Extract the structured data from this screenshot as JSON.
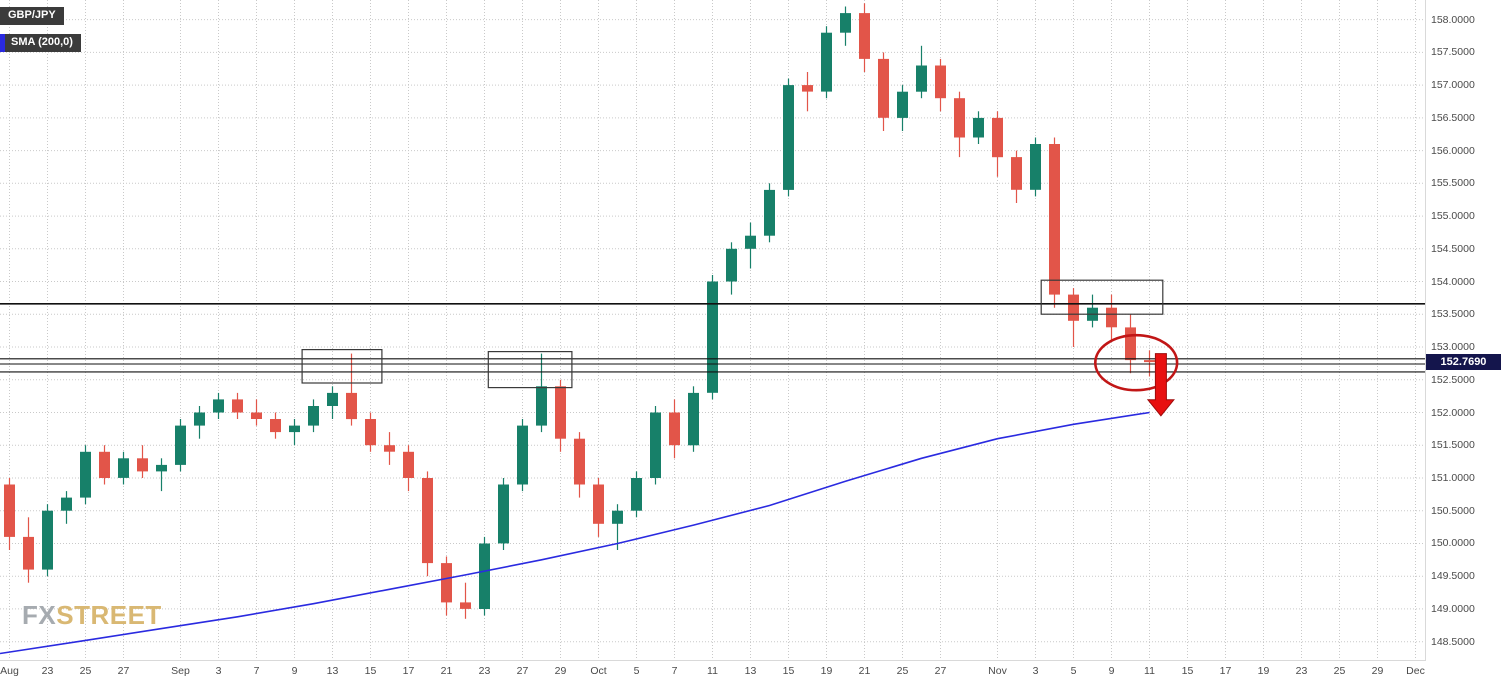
{
  "header": {
    "symbol_badge": "GBP/JPY",
    "indicator_badge": "SMA (200,0)"
  },
  "current_price": {
    "label": "152.7690",
    "value": 152.769
  },
  "watermark": {
    "fx": "FX",
    "street": "STREET"
  },
  "colors": {
    "up": "#178069",
    "down": "#e25549",
    "sma": "#2a2ae0",
    "level": "#111111",
    "grid": "#c9c9c9",
    "rect": "#3a3a3a",
    "annotation": "#c11616",
    "arrow": "#e81010",
    "axis_text": "#4a4a4a",
    "price_tag_bg": "#14154c"
  },
  "price_axis": {
    "labels": [
      "158.0000",
      "157.5000",
      "157.0000",
      "156.5000",
      "156.0000",
      "155.5000",
      "155.0000",
      "154.5000",
      "154.0000",
      "153.5000",
      "153.0000",
      "152.5000",
      "152.0000",
      "151.5000",
      "151.0000",
      "150.5000",
      "150.0000",
      "149.5000",
      "149.0000",
      "148.5000"
    ]
  },
  "time_axis": {
    "ticks": [
      {
        "label": "Aug",
        "i": 0
      },
      {
        "label": "23",
        "i": 2
      },
      {
        "label": "25",
        "i": 4
      },
      {
        "label": "27",
        "i": 6
      },
      {
        "label": "Sep",
        "i": 9
      },
      {
        "label": "3",
        "i": 11
      },
      {
        "label": "7",
        "i": 13
      },
      {
        "label": "9",
        "i": 15
      },
      {
        "label": "13",
        "i": 17
      },
      {
        "label": "15",
        "i": 19
      },
      {
        "label": "17",
        "i": 21
      },
      {
        "label": "21",
        "i": 23
      },
      {
        "label": "23",
        "i": 25
      },
      {
        "label": "27",
        "i": 27
      },
      {
        "label": "29",
        "i": 29
      },
      {
        "label": "Oct",
        "i": 31
      },
      {
        "label": "5",
        "i": 33
      },
      {
        "label": "7",
        "i": 35
      },
      {
        "label": "11",
        "i": 37
      },
      {
        "label": "13",
        "i": 39
      },
      {
        "label": "15",
        "i": 41
      },
      {
        "label": "19",
        "i": 43
      },
      {
        "label": "21",
        "i": 45
      },
      {
        "label": "25",
        "i": 47
      },
      {
        "label": "27",
        "i": 49
      },
      {
        "label": "Nov",
        "i": 52
      },
      {
        "label": "3",
        "i": 54
      },
      {
        "label": "5",
        "i": 56
      },
      {
        "label": "9",
        "i": 58
      },
      {
        "label": "11",
        "i": 60
      },
      {
        "label": "15",
        "i": 62
      },
      {
        "label": "17",
        "i": 64
      },
      {
        "label": "19",
        "i": 66
      },
      {
        "label": "23",
        "i": 68
      },
      {
        "label": "25",
        "i": 70
      },
      {
        "label": "29",
        "i": 72
      },
      {
        "label": "Dec",
        "i": 74
      }
    ]
  },
  "chart_data": {
    "type": "candlestick",
    "title": "GBP/JPY",
    "legend": [
      "SMA (200,0)"
    ],
    "ylim": [
      148.22,
      158.3
    ],
    "xlabel": "",
    "ylabel": "",
    "candles": [
      {
        "d": "Aug 19",
        "o": 150.9,
        "h": 151.0,
        "l": 149.9,
        "c": 150.1
      },
      {
        "d": "Aug 20",
        "o": 150.1,
        "h": 150.4,
        "l": 149.4,
        "c": 149.6
      },
      {
        "d": "Aug 23",
        "o": 149.6,
        "h": 150.6,
        "l": 149.5,
        "c": 150.5
      },
      {
        "d": "Aug 24",
        "o": 150.5,
        "h": 150.8,
        "l": 150.3,
        "c": 150.7
      },
      {
        "d": "Aug 25",
        "o": 150.7,
        "h": 151.5,
        "l": 150.6,
        "c": 151.4
      },
      {
        "d": "Aug 26",
        "o": 151.4,
        "h": 151.5,
        "l": 150.9,
        "c": 151.0
      },
      {
        "d": "Aug 27",
        "o": 151.0,
        "h": 151.4,
        "l": 150.9,
        "c": 151.3
      },
      {
        "d": "Aug 30",
        "o": 151.3,
        "h": 151.5,
        "l": 151.0,
        "c": 151.1
      },
      {
        "d": "Aug 31",
        "o": 151.1,
        "h": 151.3,
        "l": 150.8,
        "c": 151.2
      },
      {
        "d": "Sep 1",
        "o": 151.2,
        "h": 151.9,
        "l": 151.1,
        "c": 151.8
      },
      {
        "d": "Sep 2",
        "o": 151.8,
        "h": 152.1,
        "l": 151.6,
        "c": 152.0
      },
      {
        "d": "Sep 3",
        "o": 152.0,
        "h": 152.3,
        "l": 151.9,
        "c": 152.2
      },
      {
        "d": "Sep 6",
        "o": 152.2,
        "h": 152.3,
        "l": 151.9,
        "c": 152.0
      },
      {
        "d": "Sep 7",
        "o": 152.0,
        "h": 152.2,
        "l": 151.8,
        "c": 151.9
      },
      {
        "d": "Sep 8",
        "o": 151.9,
        "h": 152.0,
        "l": 151.6,
        "c": 151.7
      },
      {
        "d": "Sep 9",
        "o": 151.7,
        "h": 151.9,
        "l": 151.5,
        "c": 151.8
      },
      {
        "d": "Sep 10",
        "o": 151.8,
        "h": 152.2,
        "l": 151.7,
        "c": 152.1
      },
      {
        "d": "Sep 13",
        "o": 152.1,
        "h": 152.4,
        "l": 151.9,
        "c": 152.3
      },
      {
        "d": "Sep 14",
        "o": 152.3,
        "h": 152.9,
        "l": 151.8,
        "c": 151.9
      },
      {
        "d": "Sep 15",
        "o": 151.9,
        "h": 152.0,
        "l": 151.4,
        "c": 151.5
      },
      {
        "d": "Sep 16",
        "o": 151.5,
        "h": 151.7,
        "l": 151.2,
        "c": 151.4
      },
      {
        "d": "Sep 17",
        "o": 151.4,
        "h": 151.5,
        "l": 150.8,
        "c": 151.0
      },
      {
        "d": "Sep 20",
        "o": 151.0,
        "h": 151.1,
        "l": 149.5,
        "c": 149.7
      },
      {
        "d": "Sep 21",
        "o": 149.7,
        "h": 149.8,
        "l": 148.9,
        "c": 149.1
      },
      {
        "d": "Sep 22",
        "o": 149.1,
        "h": 149.4,
        "l": 148.85,
        "c": 149.0
      },
      {
        "d": "Sep 23",
        "o": 149.0,
        "h": 150.1,
        "l": 148.9,
        "c": 150.0
      },
      {
        "d": "Sep 24",
        "o": 150.0,
        "h": 151.0,
        "l": 149.9,
        "c": 150.9
      },
      {
        "d": "Sep 27",
        "o": 150.9,
        "h": 151.9,
        "l": 150.8,
        "c": 151.8
      },
      {
        "d": "Sep 28",
        "o": 151.8,
        "h": 152.9,
        "l": 151.7,
        "c": 152.4
      },
      {
        "d": "Sep 29",
        "o": 152.4,
        "h": 152.5,
        "l": 151.4,
        "c": 151.6
      },
      {
        "d": "Sep 30",
        "o": 151.6,
        "h": 151.7,
        "l": 150.7,
        "c": 150.9
      },
      {
        "d": "Oct 1",
        "o": 150.9,
        "h": 151.0,
        "l": 150.1,
        "c": 150.3
      },
      {
        "d": "Oct 4",
        "o": 150.3,
        "h": 150.6,
        "l": 149.9,
        "c": 150.5
      },
      {
        "d": "Oct 5",
        "o": 150.5,
        "h": 151.1,
        "l": 150.4,
        "c": 151.0
      },
      {
        "d": "Oct 6",
        "o": 151.0,
        "h": 152.1,
        "l": 150.9,
        "c": 152.0
      },
      {
        "d": "Oct 7",
        "o": 152.0,
        "h": 152.2,
        "l": 151.3,
        "c": 151.5
      },
      {
        "d": "Oct 8",
        "o": 151.5,
        "h": 152.4,
        "l": 151.4,
        "c": 152.3
      },
      {
        "d": "Oct 11",
        "o": 152.3,
        "h": 154.1,
        "l": 152.2,
        "c": 154.0
      },
      {
        "d": "Oct 12",
        "o": 154.0,
        "h": 154.6,
        "l": 153.8,
        "c": 154.5
      },
      {
        "d": "Oct 13",
        "o": 154.5,
        "h": 154.9,
        "l": 154.2,
        "c": 154.7
      },
      {
        "d": "Oct 14",
        "o": 154.7,
        "h": 155.5,
        "l": 154.6,
        "c": 155.4
      },
      {
        "d": "Oct 15",
        "o": 155.4,
        "h": 157.1,
        "l": 155.3,
        "c": 157.0
      },
      {
        "d": "Oct 18",
        "o": 157.0,
        "h": 157.2,
        "l": 156.6,
        "c": 156.9
      },
      {
        "d": "Oct 19",
        "o": 156.9,
        "h": 157.9,
        "l": 156.8,
        "c": 157.8
      },
      {
        "d": "Oct 20",
        "o": 157.8,
        "h": 158.2,
        "l": 157.6,
        "c": 158.1
      },
      {
        "d": "Oct 21",
        "o": 158.1,
        "h": 158.25,
        "l": 157.2,
        "c": 157.4
      },
      {
        "d": "Oct 22",
        "o": 157.4,
        "h": 157.5,
        "l": 156.3,
        "c": 156.5
      },
      {
        "d": "Oct 25",
        "o": 156.5,
        "h": 157.0,
        "l": 156.3,
        "c": 156.9
      },
      {
        "d": "Oct 26",
        "o": 156.9,
        "h": 157.6,
        "l": 156.8,
        "c": 157.3
      },
      {
        "d": "Oct 27",
        "o": 157.3,
        "h": 157.4,
        "l": 156.6,
        "c": 156.8
      },
      {
        "d": "Oct 28",
        "o": 156.8,
        "h": 156.9,
        "l": 155.9,
        "c": 156.2
      },
      {
        "d": "Oct 29",
        "o": 156.2,
        "h": 156.6,
        "l": 156.1,
        "c": 156.5
      },
      {
        "d": "Nov 1",
        "o": 156.5,
        "h": 156.6,
        "l": 155.6,
        "c": 155.9
      },
      {
        "d": "Nov 2",
        "o": 155.9,
        "h": 156.0,
        "l": 155.2,
        "c": 155.4
      },
      {
        "d": "Nov 3",
        "o": 155.4,
        "h": 156.2,
        "l": 155.3,
        "c": 156.1
      },
      {
        "d": "Nov 4",
        "o": 156.1,
        "h": 156.2,
        "l": 153.6,
        "c": 153.8
      },
      {
        "d": "Nov 5",
        "o": 153.8,
        "h": 153.9,
        "l": 153.0,
        "c": 153.4
      },
      {
        "d": "Nov 8",
        "o": 153.4,
        "h": 153.8,
        "l": 153.3,
        "c": 153.6
      },
      {
        "d": "Nov 9",
        "o": 153.6,
        "h": 153.8,
        "l": 153.1,
        "c": 153.3
      },
      {
        "d": "Nov 10",
        "o": 153.3,
        "h": 153.5,
        "l": 152.6,
        "c": 152.8
      },
      {
        "d": "Nov 11",
        "o": 152.8,
        "h": 152.95,
        "l": 152.55,
        "c": 152.769
      }
    ],
    "sma": {
      "name": "SMA (200,0)",
      "points": [
        {
          "i": -0.5,
          "v": 148.32
        },
        {
          "i": 4,
          "v": 148.52
        },
        {
          "i": 8,
          "v": 148.7
        },
        {
          "i": 12,
          "v": 148.88
        },
        {
          "i": 16,
          "v": 149.08
        },
        {
          "i": 20,
          "v": 149.3
        },
        {
          "i": 24,
          "v": 149.52
        },
        {
          "i": 28,
          "v": 149.75
        },
        {
          "i": 32,
          "v": 150.0
        },
        {
          "i": 36,
          "v": 150.28
        },
        {
          "i": 40,
          "v": 150.58
        },
        {
          "i": 44,
          "v": 150.95
        },
        {
          "i": 48,
          "v": 151.3
        },
        {
          "i": 52,
          "v": 151.6
        },
        {
          "i": 56,
          "v": 151.82
        },
        {
          "i": 60,
          "v": 152.0
        }
      ]
    },
    "levels": [
      {
        "v": 153.66,
        "w": 1.6
      },
      {
        "v": 152.82,
        "w": 1.1
      },
      {
        "v": 152.74,
        "w": 1.1
      },
      {
        "v": 152.62,
        "w": 1.1
      }
    ],
    "annotations": {
      "rects": [
        {
          "i0": 15.4,
          "i1": 19.6,
          "p0": 152.45,
          "p1": 152.96
        },
        {
          "i0": 25.2,
          "i1": 29.6,
          "p0": 152.38,
          "p1": 152.93
        },
        {
          "i0": 54.3,
          "i1": 60.7,
          "p0": 153.5,
          "p1": 154.02
        }
      ],
      "ellipse": {
        "i": 59.3,
        "p": 152.76,
        "ri": 2.15,
        "rp": 0.42
      },
      "arrow": {
        "i": 60.6,
        "p_top": 152.9,
        "p_bottom": 151.95
      }
    }
  }
}
